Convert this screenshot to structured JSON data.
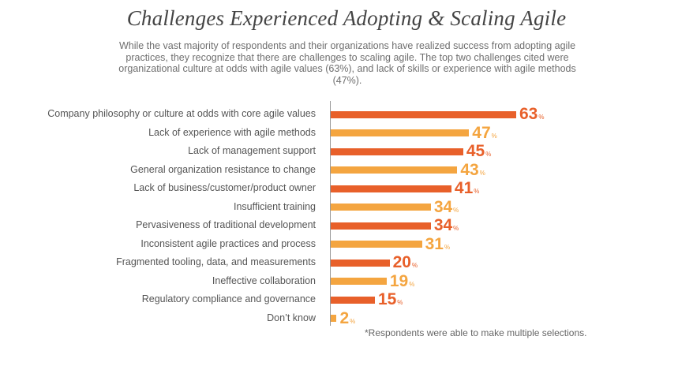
{
  "chart_data": {
    "type": "bar",
    "orientation": "horizontal",
    "title": "Challenges Experienced Adopting & Scaling Agile",
    "subtitle": "While the vast majority of respondents and their organizations have realized success from adopting agile practices, they recognize that there are challenges to scaling agile. The top two challenges cited were organizational culture at odds with agile values (63%), and lack of skills or experience with agile methods (47%).",
    "categories": [
      "Company philosophy or culture at odds with core agile values",
      "Lack of experience with agile methods",
      "Lack of management support",
      "General organization resistance to change",
      "Lack of business/customer/product owner",
      "Insufficient training",
      "Pervasiveness of traditional development",
      "Inconsistent agile practices and process",
      "Fragmented tooling, data, and measurements",
      "Ineffective collaboration",
      "Regulatory compliance and governance",
      "Don’t know"
    ],
    "values": [
      63,
      47,
      45,
      43,
      41,
      34,
      34,
      31,
      20,
      19,
      15,
      2
    ],
    "unit": "%",
    "colors": [
      "#e8602a",
      "#f4a540"
    ],
    "footnote": "*Respondents were able to make multiple selections."
  }
}
